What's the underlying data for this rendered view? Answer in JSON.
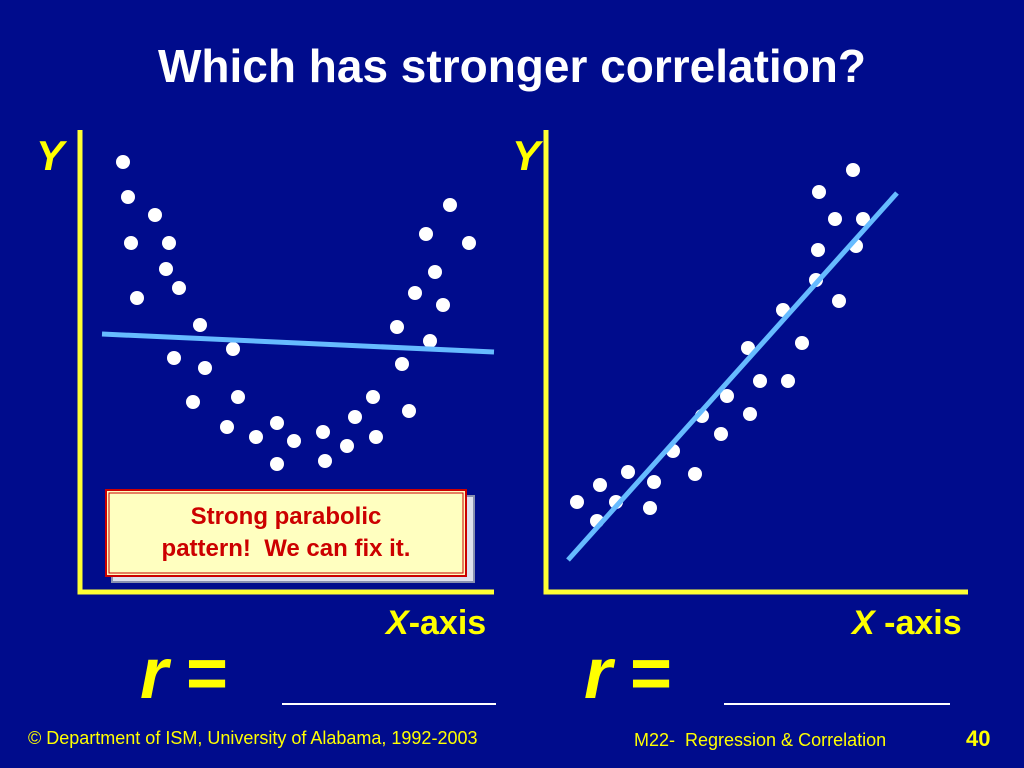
{
  "title": "Which has stronger correlation?",
  "left_panel": {
    "y_label": "Y",
    "x_label": {
      "var": "X",
      "suffix": "-axis"
    },
    "callout": [
      "Strong parabolic",
      "pattern!  We can fix it."
    ]
  },
  "right_panel": {
    "y_label": "Y",
    "x_label": {
      "var": "X",
      "suffix": " -axis"
    }
  },
  "r_label": {
    "var": "r",
    "eq": "="
  },
  "footer": {
    "copyright": "© Department of ISM, University of Alabama, 1992-2003",
    "course": "M22-  Regression & Correlation",
    "page": "40"
  }
}
